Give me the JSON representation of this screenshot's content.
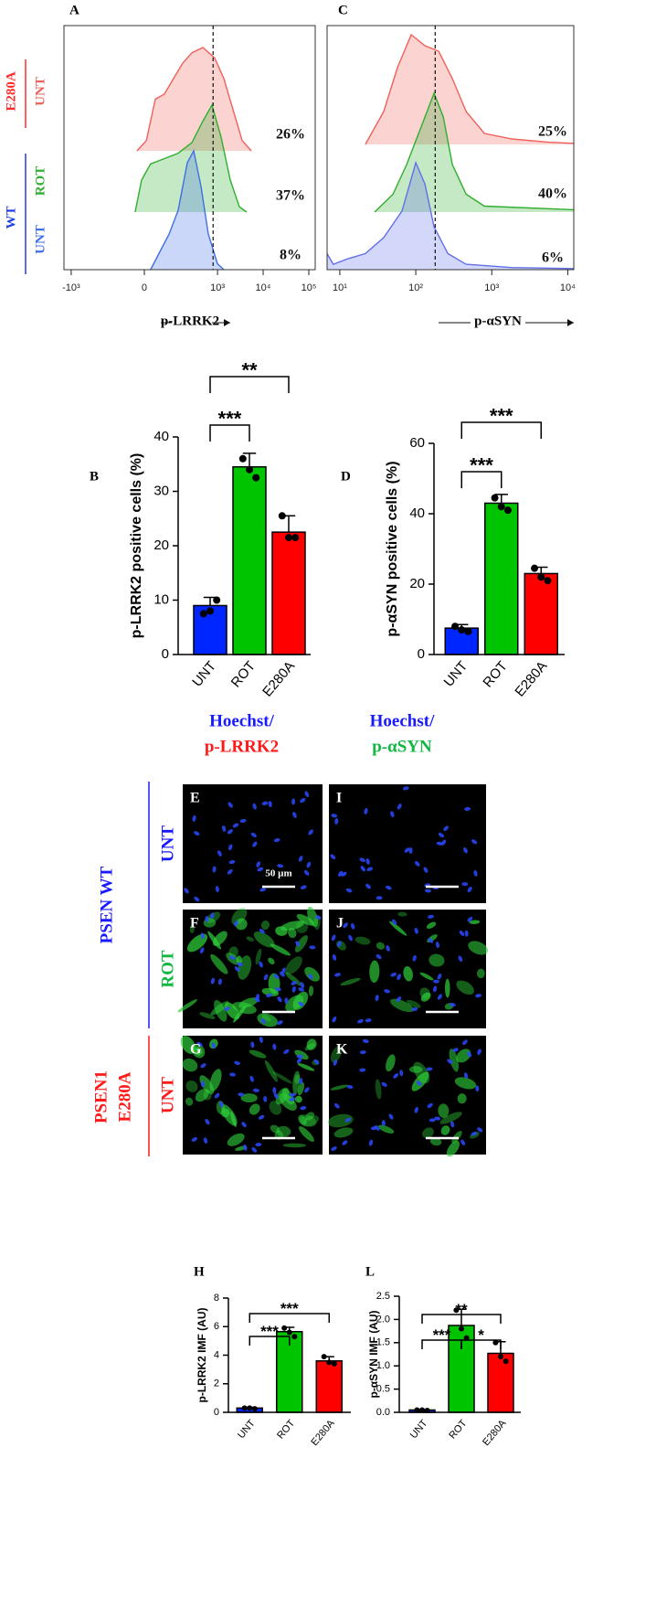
{
  "chart_data": [
    {
      "type": "density",
      "label": "A",
      "xlabel": "p-LRRK2",
      "scale": "biexponential",
      "xlim": [
        -1440,
        138000
      ],
      "xticks": [
        {
          "value": -1000,
          "label": "-10³"
        },
        0,
        {
          "value": 1000,
          "label": "10³"
        },
        {
          "value": 10000,
          "label": "10⁴"
        },
        {
          "value": 100000,
          "label": "10⁵"
        }
      ],
      "threshold": 800,
      "groups": [
        {
          "name": "E280A",
          "color": "#ff2a2a"
        },
        {
          "name": "WT",
          "color": "#1f3fe6"
        }
      ],
      "series": [
        {
          "name": "UNT",
          "color": "#f0605a",
          "label": "26%",
          "x": [
            -19,
            5,
            29,
            60,
            103,
            170,
            273,
            476,
            866,
            1377,
            2185,
            3461,
            5490
          ],
          "values": [
            0,
            10,
            50,
            55,
            70,
            85,
            95,
            100,
            90,
            70,
            40,
            10,
            0
          ]
        },
        {
          "name": "ROT",
          "color": "#2fae2f",
          "label": "37%",
          "x": [
            -24,
            -7,
            16,
            60,
            133,
            273,
            476,
            756,
            1200,
            1900,
            3015,
            4360
          ],
          "values": [
            0,
            30,
            45,
            50,
            55,
            65,
            85,
            100,
            70,
            30,
            5,
            0
          ]
        },
        {
          "name": "UNT",
          "color": "#3f6fe6",
          "label": "8%",
          "x": [
            16,
            43,
            80,
            133,
            215,
            299,
            434,
            628,
            998,
            1377
          ],
          "values": [
            0,
            15,
            30,
            50,
            90,
            100,
            70,
            30,
            5,
            0
          ]
        }
      ]
    },
    {
      "type": "density",
      "label": "C",
      "xlabel": "p-αSYN",
      "scale": "log",
      "xlim": [
        6.8,
        12000
      ],
      "xticks": [
        {
          "value": 10,
          "label": "10¹"
        },
        {
          "value": 100,
          "label": "10²"
        },
        {
          "value": 1000,
          "label": "10³"
        },
        {
          "value": 10000,
          "label": "10⁴"
        }
      ],
      "threshold": 180,
      "series": [
        {
          "color": "#f0605a",
          "label": "25%",
          "x": [
            21.7,
            37.8,
            57.4,
            87.1,
            132,
            200,
            303,
            460,
            801,
            1841,
            5585,
            12000
          ],
          "values": [
            0,
            30,
            70,
            100,
            90,
            85,
            60,
            30,
            10,
            5,
            2,
            1
          ]
        },
        {
          "color": "#2fae2f",
          "label": "40%",
          "x": [
            28.7,
            50,
            75.8,
            115,
            174,
            230,
            303,
            460,
            801,
            12000
          ],
          "values": [
            0,
            15,
            40,
            70,
            100,
            80,
            40,
            15,
            5,
            2
          ]
        },
        {
          "color": "#6070e8",
          "label": "6%",
          "x": [
            6.8,
            8.2,
            12.5,
            21.7,
            37.8,
            66,
            100,
            132,
            174,
            264,
            460,
            1841,
            12000
          ],
          "values": [
            15,
            5,
            10,
            15,
            30,
            55,
            100,
            80,
            40,
            15,
            5,
            2,
            1
          ]
        }
      ]
    },
    {
      "type": "bar",
      "label": "B",
      "ylabel": "p-LRRK2 positive cells (%)",
      "categories": [
        "UNT",
        "ROT",
        "E280A"
      ],
      "values": [
        9,
        34.5,
        22.5
      ],
      "errors": [
        1.5,
        2.5,
        3
      ],
      "points": [
        [
          7.5,
          8,
          10
        ],
        [
          36,
          34,
          32.5
        ],
        [
          25.5,
          21.5,
          21.5
        ]
      ],
      "colors": [
        "#0026ff",
        "#00c400",
        "#ff0000"
      ],
      "ylim": [
        0,
        40
      ],
      "yticks": [
        0,
        10,
        20,
        30,
        40
      ],
      "significance": [
        {
          "pair": [
            0,
            1
          ],
          "label": "***"
        },
        {
          "pair": [
            0,
            2
          ],
          "label": "**"
        }
      ]
    },
    {
      "type": "bar",
      "label": "D",
      "ylabel": "p-αSYN positive cells (%)",
      "categories": [
        "UNT",
        "ROT",
        "E280A"
      ],
      "values": [
        7.5,
        43,
        23
      ],
      "errors": [
        1,
        2.5,
        1.8
      ],
      "points": [
        [
          8,
          7,
          6.5
        ],
        [
          44.5,
          42,
          41
        ],
        [
          24.5,
          22,
          21
        ]
      ],
      "colors": [
        "#0026ff",
        "#00c400",
        "#ff0000"
      ],
      "ylim": [
        0,
        60
      ],
      "yticks": [
        0,
        20,
        40,
        60
      ],
      "significance": [
        {
          "pair": [
            0,
            1
          ],
          "label": "***"
        },
        {
          "pair": [
            0,
            2
          ],
          "label": "***"
        }
      ]
    },
    {
      "type": "bar",
      "label": "H",
      "ylabel": "p-LRRK2 IMF (AU)",
      "categories": [
        "UNT",
        "ROT",
        "E280A"
      ],
      "values": [
        0.3,
        5.65,
        3.6
      ],
      "errors": [
        0.05,
        0.3,
        0.3
      ],
      "points": [
        [
          0.3,
          0.3,
          0.25
        ],
        [
          5.9,
          5.6,
          5.3
        ],
        [
          3.9,
          3.5,
          3.4
        ]
      ],
      "colors": [
        "#0026ff",
        "#00c400",
        "#ff0000"
      ],
      "ylim": [
        0,
        8
      ],
      "yticks": [
        0,
        2,
        4,
        6,
        8
      ],
      "significance": [
        {
          "pair": [
            0,
            1
          ],
          "label": "***"
        },
        {
          "pair": [
            0,
            2
          ],
          "label": "***"
        }
      ]
    },
    {
      "type": "bar",
      "label": "L",
      "ylabel": "p-αSYN IMF (AU)",
      "categories": [
        "UNT",
        "ROT",
        "E280A"
      ],
      "values": [
        0.05,
        1.87,
        1.27
      ],
      "errors": [
        0.01,
        0.35,
        0.25
      ],
      "points": [
        [
          0.05,
          0.05,
          0.04
        ],
        [
          2.2,
          1.8,
          1.6
        ],
        [
          1.5,
          1.2,
          1.1
        ]
      ],
      "colors": [
        "#0026ff",
        "#00c400",
        "#ff0000"
      ],
      "ylim": [
        0,
        2.5
      ],
      "yticks": [
        {
          "value": 0,
          "label": "0.0"
        },
        {
          "value": 0.5,
          "label": "0.5"
        },
        {
          "value": 1,
          "label": "1.0"
        },
        {
          "value": 1.5,
          "label": "1.5"
        },
        {
          "value": 2,
          "label": "2.0"
        },
        {
          "value": 2.5,
          "label": "2.5"
        }
      ],
      "significance": [
        {
          "pair": [
            0,
            1
          ],
          "label": "***"
        },
        {
          "pair": [
            1,
            2
          ],
          "label": "*"
        },
        {
          "pair": [
            0,
            2
          ],
          "label": "**"
        }
      ]
    }
  ],
  "micrographs": {
    "column_headers": [
      [
        "Hoechst/",
        "p-LRRK2"
      ],
      [
        "Hoechst/",
        "p-αSYN"
      ]
    ],
    "group_labels": [
      [
        "PSEN WT"
      ],
      [
        "PSEN1",
        "E280A"
      ]
    ],
    "row_labels": [
      "UNT",
      "ROT",
      "UNT"
    ],
    "panels": [
      [
        "E",
        "I"
      ],
      [
        "F",
        "J"
      ],
      [
        "G",
        "K"
      ]
    ],
    "scale_bar": "50 µm"
  }
}
